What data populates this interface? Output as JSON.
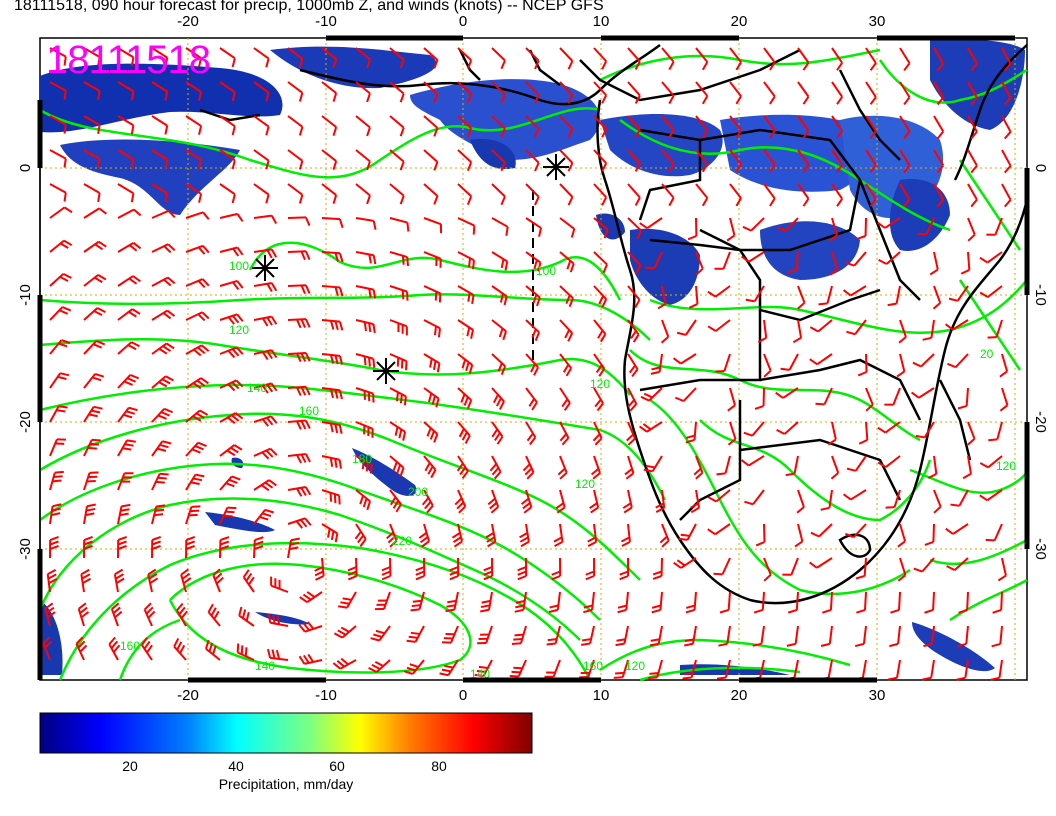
{
  "title": "18111518, 090 hour forecast for precip, 1000mb Z, and winds (knots) -- NCEP GFS",
  "stamp": "18111518",
  "colors": {
    "height_contour": "#00ee00",
    "wind_barb": "#ff0000",
    "coastline": "#000000",
    "grid": "#ddaa00",
    "stamp": "#ff00ff"
  },
  "axes": {
    "lon_ticks": [
      "-20",
      "-10",
      "0",
      "10",
      "20",
      "30"
    ],
    "lat_ticks": [
      "0",
      "-10",
      "-20",
      "-30"
    ]
  },
  "contour_labels": [
    "100",
    "120",
    "140",
    "160",
    "180",
    "200",
    "220",
    "100",
    "120",
    "140",
    "160",
    "20",
    "120",
    "140",
    "160",
    "120",
    "120"
  ],
  "colorbar": {
    "title": "Precipitation, mm/day",
    "ticks": [
      "20",
      "40",
      "60",
      "80"
    ],
    "colors": [
      "#00007f",
      "#0000ff",
      "#007fff",
      "#00ffff",
      "#7fff7f",
      "#ffff00",
      "#ff7f00",
      "#ff0000",
      "#7f0000"
    ]
  },
  "markers": [
    "low-center",
    "high-center",
    "high-center"
  ]
}
